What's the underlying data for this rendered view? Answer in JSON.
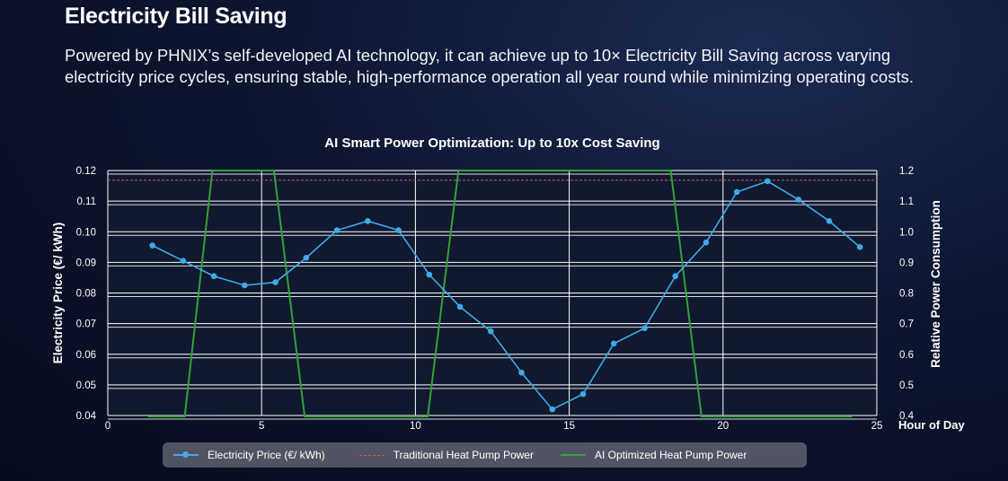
{
  "header": {
    "title": "Electricity Bill Saving",
    "description": "Powered by PHNIX’s self-developed AI technology, it can achieve up to 10× Electricity Bill Saving across varying electricity price cycles, ensuring stable, high-performance operation all year round while minimizing operating costs."
  },
  "colors": {
    "price": "#3fa9e6",
    "traditional": "#e05050",
    "ai": "#35a03a",
    "grid": "#ffffff"
  },
  "chart_data": {
    "type": "line",
    "title": "AI Smart Power Optimization: Up to 10x Cost Saving",
    "xlabel": "Hour of Day",
    "ylabel": "Electricity Price (€/ kWh)",
    "y2label": "Relative Power Consumption",
    "xlim": [
      0,
      25
    ],
    "ylim": [
      0.04,
      0.12
    ],
    "y2lim": [
      0.4,
      1.2
    ],
    "x_ticks": [
      "0",
      "5",
      "10",
      "15",
      "20",
      "25"
    ],
    "y_ticks": [
      "0.04",
      "0.05",
      "0.06",
      "0.07",
      "0.08",
      "0.09",
      "0.10",
      "0.11",
      "0.12"
    ],
    "y2_ticks": [
      "0.4",
      "0.5",
      "0.6",
      "0.7",
      "0.8",
      "0.9",
      "1.0",
      "1.1",
      "1.2"
    ],
    "grid": true,
    "legend_position": "bottom",
    "series": [
      {
        "name": "Electricity Price (€/ kWh)",
        "axis": "left",
        "x": [
          1.5,
          2.5,
          3.5,
          4.5,
          5.5,
          6.5,
          7.5,
          8.5,
          9.5,
          10.5,
          11.5,
          12.5,
          13.5,
          14.5,
          15.5,
          16.5,
          17.5,
          18.5,
          19.5,
          20.5,
          21.5,
          22.5,
          23.5,
          24.5
        ],
        "values": [
          0.0955,
          0.0905,
          0.0855,
          0.0825,
          0.0835,
          0.0915,
          0.1005,
          0.1035,
          0.1005,
          0.086,
          0.0755,
          0.0675,
          0.054,
          0.042,
          0.047,
          0.0635,
          0.0685,
          0.0855,
          0.0965,
          0.113,
          0.1165,
          0.1105,
          0.1035,
          0.095
        ]
      },
      {
        "name": "Traditional Heat Pump Power",
        "axis": "right",
        "x": [
          0,
          25
        ],
        "values": [
          1.18,
          1.18
        ]
      },
      {
        "name": "AI Optimized Heat Pump Power",
        "axis": "right",
        "x": [
          1.3,
          2.5,
          3.4,
          5.4,
          6.4,
          10.4,
          11.4,
          18.3,
          19.3,
          24.2
        ],
        "values": [
          0.42,
          0.42,
          1.2,
          1.2,
          0.42,
          0.42,
          1.2,
          1.2,
          0.42,
          0.42
        ]
      }
    ]
  }
}
